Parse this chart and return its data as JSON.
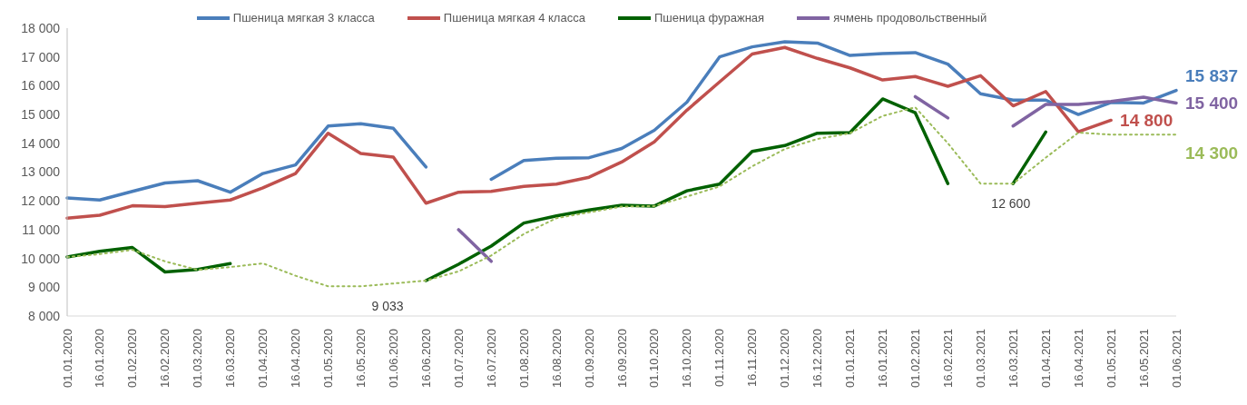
{
  "chart_data": {
    "type": "line",
    "categories": [
      "01.01.2020",
      "16.01.2020",
      "01.02.2020",
      "16.02.2020",
      "01.03.2020",
      "16.03.2020",
      "01.04.2020",
      "16.04.2020",
      "01.05.2020",
      "16.05.2020",
      "01.06.2020",
      "16.06.2020",
      "01.07.2020",
      "16.07.2020",
      "01.08.2020",
      "16.08.2020",
      "01.09.2020",
      "16.09.2020",
      "01.10.2020",
      "16.10.2020",
      "01.11.2020",
      "16.11.2020",
      "01.12.2020",
      "16.12.2020",
      "01.01.2021",
      "16.01.2021",
      "01.02.2021",
      "16.02.2021",
      "01.03.2021",
      "16.03.2021",
      "01.04.2021",
      "16.04.2021",
      "01.05.2021",
      "16.05.2021",
      "01.06.2021"
    ],
    "series": [
      {
        "name": "Пшеница мягкая 3 класса",
        "color": "#4a7ebb",
        "values": [
          12100,
          12030,
          12330,
          12620,
          12700,
          12300,
          12950,
          13250,
          14600,
          14680,
          14520,
          13180,
          null,
          12750,
          13400,
          13480,
          13500,
          13820,
          14450,
          15430,
          17000,
          17350,
          17530,
          17480,
          17050,
          17120,
          17150,
          16750,
          15720,
          15500,
          15500,
          15000,
          15420,
          15400,
          15837
        ],
        "value_labels": [
          null,
          null,
          null,
          null,
          null,
          null,
          null,
          null,
          null,
          null,
          null,
          null,
          null,
          null,
          null,
          null,
          null,
          null,
          null,
          null,
          null,
          null,
          null,
          null,
          null,
          null,
          null,
          null,
          null,
          null,
          null,
          null,
          null,
          null,
          "15 837"
        ]
      },
      {
        "name": "Пшеница мягкая 4 класса",
        "color": "#c0504d",
        "values": [
          11400,
          11500,
          11830,
          11800,
          11920,
          12030,
          12450,
          12950,
          14350,
          13650,
          13520,
          11920,
          12300,
          12330,
          12500,
          12580,
          12820,
          13350,
          14050,
          15150,
          16130,
          17100,
          17330,
          16950,
          16620,
          16200,
          16320,
          15980,
          16350,
          15300,
          15800,
          14400,
          14800,
          null,
          null
        ],
        "value_labels": [
          null,
          null,
          null,
          null,
          null,
          null,
          null,
          null,
          null,
          null,
          null,
          null,
          null,
          null,
          null,
          null,
          null,
          null,
          null,
          null,
          null,
          null,
          null,
          null,
          null,
          null,
          null,
          null,
          null,
          null,
          null,
          null,
          "14 800",
          null,
          null
        ]
      },
      {
        "name": "Пшеница фуражная",
        "color": "#006100",
        "values": [
          10050,
          10250,
          10380,
          9530,
          9620,
          9820,
          null,
          null,
          null,
          null,
          null,
          9230,
          9800,
          10430,
          11230,
          11480,
          11680,
          11850,
          11820,
          12350,
          12580,
          13720,
          13920,
          14350,
          14370,
          15540,
          15060,
          12600,
          null,
          12600,
          14390,
          null,
          null,
          null,
          null
        ]
      },
      {
        "name": "ячмень продовольственный",
        "color": "#8064a2",
        "values": [
          null,
          null,
          null,
          null,
          null,
          null,
          null,
          null,
          null,
          null,
          null,
          null,
          11000,
          9900,
          null,
          null,
          null,
          null,
          null,
          null,
          null,
          null,
          null,
          null,
          null,
          null,
          15620,
          14880,
          null,
          14600,
          15350,
          15350,
          15450,
          15600,
          15400
        ],
        "value_labels": [
          null,
          null,
          null,
          null,
          null,
          null,
          null,
          null,
          null,
          null,
          null,
          null,
          null,
          null,
          null,
          null,
          null,
          null,
          null,
          null,
          null,
          null,
          null,
          null,
          null,
          null,
          null,
          null,
          null,
          null,
          null,
          null,
          null,
          null,
          "15 400"
        ]
      },
      {
        "color": "#9bbb59",
        "line_style": "dotted",
        "values": [
          10050,
          10150,
          10300,
          9900,
          9600,
          9700,
          9830,
          9400,
          9033,
          9033,
          9130,
          9230,
          9550,
          10100,
          10850,
          11400,
          11600,
          11800,
          11820,
          12150,
          12500,
          13200,
          13800,
          14150,
          14350,
          14950,
          15250,
          14000,
          12600,
          12600,
          13500,
          14370,
          14300,
          14300,
          14300
        ],
        "value_labels": [
          null,
          null,
          null,
          null,
          null,
          null,
          null,
          null,
          null,
          "9 033",
          null,
          null,
          null,
          null,
          null,
          null,
          null,
          null,
          null,
          null,
          null,
          null,
          null,
          null,
          null,
          null,
          null,
          null,
          "12 600",
          null,
          null,
          null,
          null,
          null,
          "14 300"
        ]
      }
    ],
    "ylim": [
      8000,
      18000
    ],
    "yticks": [
      {
        "value": 8000,
        "label": "8 000"
      },
      {
        "value": 9000,
        "label": "9 000"
      },
      {
        "value": 10000,
        "label": "10 000"
      },
      {
        "value": 11000,
        "label": "11 000"
      },
      {
        "value": 12000,
        "label": "12 000"
      },
      {
        "value": 13000,
        "label": "13 000"
      },
      {
        "value": 14000,
        "label": "14 000"
      },
      {
        "value": 15000,
        "label": "15 000"
      },
      {
        "value": 16000,
        "label": "16 000"
      },
      {
        "value": 17000,
        "label": "17 000"
      },
      {
        "value": 18000,
        "label": "18 000"
      }
    ],
    "legend": "top",
    "marker": "none",
    "line_style": "solid"
  }
}
